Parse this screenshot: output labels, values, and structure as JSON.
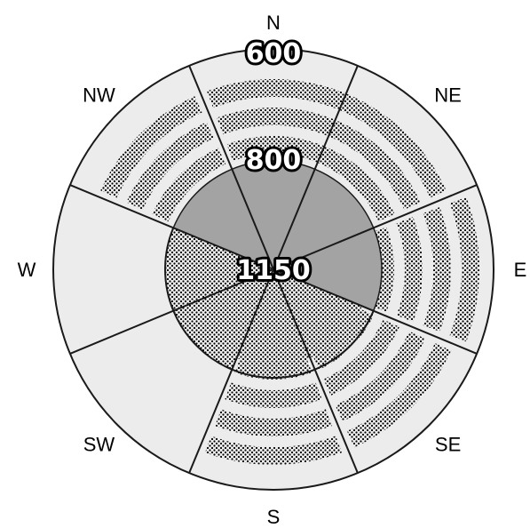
{
  "chart_data": {
    "type": "polar-wind-rose",
    "directions": [
      "N",
      "NE",
      "E",
      "SE",
      "S",
      "SW",
      "W",
      "NW"
    ],
    "sector_bearing_ranges_deg": [
      [
        337.5,
        22.5
      ],
      [
        22.5,
        67.5
      ],
      [
        67.5,
        112.5
      ],
      [
        112.5,
        157.5
      ],
      [
        157.5,
        202.5
      ],
      [
        202.5,
        247.5
      ],
      [
        247.5,
        292.5
      ],
      [
        292.5,
        337.5
      ]
    ],
    "radial_axis": {
      "reversed": true,
      "tick_labels": [
        "600",
        "800",
        "1150"
      ],
      "tick_values": [
        600,
        800,
        1150
      ],
      "range": [
        1150,
        600
      ]
    },
    "series": [
      {
        "pattern": "dotted",
        "ranges": [
          {
            "from_deg": 337.5,
            "to_deg": 67.5,
            "inner": 800,
            "outer": 600
          },
          {
            "from_deg": 67.5,
            "to_deg": 112.5,
            "inner": 890,
            "outer": 600
          },
          {
            "from_deg": 112.5,
            "to_deg": 157.5,
            "inner": 1150,
            "outer": 600
          },
          {
            "from_deg": 157.5,
            "to_deg": 202.5,
            "inner": 1150,
            "outer": 600
          },
          {
            "from_deg": 202.5,
            "to_deg": 247.5,
            "inner": 1150,
            "outer": 800
          },
          {
            "from_deg": 247.5,
            "to_deg": 292.5,
            "inner": 1150,
            "outer": 800
          },
          {
            "from_deg": 292.5,
            "to_deg": 337.5,
            "inner": 800,
            "outer": 600
          }
        ]
      },
      {
        "pattern": "dark",
        "ranges": [
          {
            "from_deg": 292.5,
            "to_deg": 112.5,
            "inner": 1150,
            "outer": 800
          }
        ]
      }
    ],
    "colors": {
      "light_fill": "#ececec",
      "dark_fill": "#a3a3a3",
      "dot_color": "#000000",
      "line_color": "#1a1a1a"
    }
  }
}
